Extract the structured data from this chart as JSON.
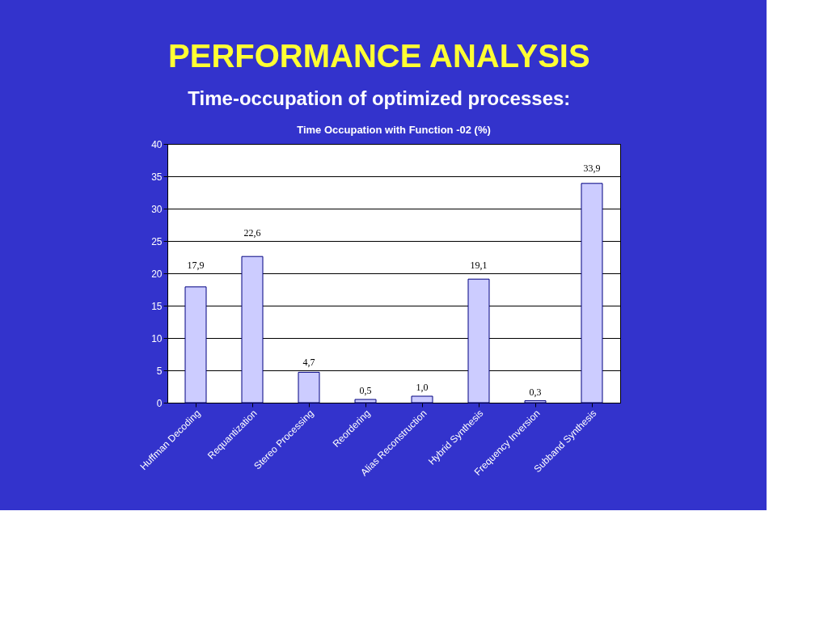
{
  "chart_data": {
    "type": "bar",
    "title": "PERFORMANCE ANALYSIS",
    "subtitle": "Time-occupation of optimized processes:",
    "annotations": [
      "Time Occupation with Function -02 (%)"
    ],
    "categories": [
      "Huffman Decoding",
      "Requantization",
      "Stereo Processing",
      "Reordering",
      "Alias Reconstruction",
      "Hybrid Synthesis",
      "Frequency Inversion",
      "Subband Synthesis"
    ],
    "values": [
      17.9,
      22.6,
      4.7,
      0.5,
      1.0,
      19.1,
      0.3,
      33.9
    ],
    "value_labels": [
      "17,9",
      "22,6",
      "4,7",
      "0,5",
      "1,0",
      "19,1",
      "0,3",
      "33,9"
    ],
    "color": "#ccccff",
    "ylim": [
      0,
      40
    ],
    "yticks": [
      0,
      5,
      10,
      15,
      20,
      25,
      30,
      35,
      40
    ],
    "grid": "y"
  }
}
